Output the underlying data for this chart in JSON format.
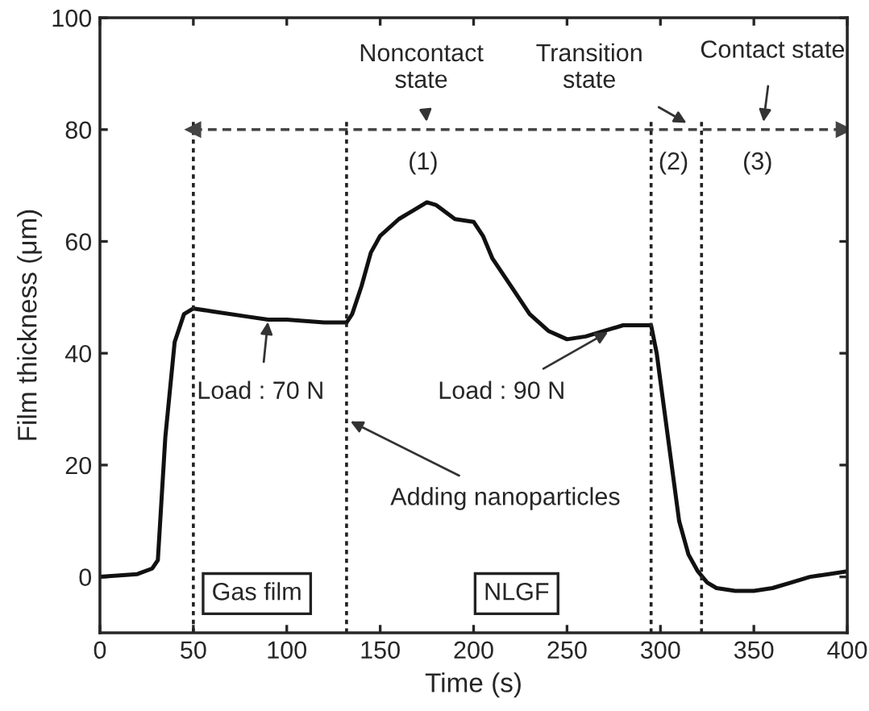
{
  "chart_data": {
    "type": "line",
    "xlabel": "Time (s)",
    "ylabel": "Film thickness (μm)",
    "xlim": [
      0,
      400
    ],
    "xticks": [
      0,
      50,
      100,
      150,
      200,
      250,
      300,
      350,
      400
    ],
    "ylim": [
      -10,
      100
    ],
    "yticks": [
      0,
      20,
      40,
      60,
      80,
      100
    ],
    "grid": false,
    "marker": "none",
    "line_style": "solid",
    "series": [
      {
        "color": "#111111",
        "x": [
          0,
          20,
          28,
          31,
          35,
          40,
          45,
          50,
          60,
          80,
          90,
          100,
          120,
          132,
          135,
          140,
          145,
          150,
          160,
          170,
          175,
          180,
          190,
          200,
          205,
          210,
          220,
          230,
          240,
          250,
          260,
          270,
          280,
          290,
          295,
          298,
          302,
          306,
          310,
          315,
          320,
          325,
          330,
          340,
          350,
          360,
          370,
          380,
          390,
          400
        ],
        "values": [
          0,
          0.5,
          1.5,
          3,
          25,
          42,
          47,
          48,
          47.5,
          46.5,
          46,
          46,
          45.5,
          45.5,
          47,
          52,
          58,
          61,
          64,
          66,
          67,
          66.5,
          64,
          63.5,
          61,
          57,
          52,
          47,
          44,
          42.5,
          43,
          44,
          45,
          45,
          45,
          40,
          30,
          20,
          10,
          4,
          1,
          -1,
          -2,
          -2.5,
          -2.5,
          -2,
          -1,
          0,
          0.5,
          1
        ]
      }
    ],
    "ref_lines": [
      {
        "axis": "x",
        "value": 50,
        "line_style": "dotted"
      },
      {
        "axis": "x",
        "value": 132,
        "line_style": "dotted"
      },
      {
        "axis": "x",
        "value": 295,
        "line_style": "dotted"
      },
      {
        "axis": "x",
        "value": 322,
        "line_style": "dotted"
      },
      {
        "axis": "y",
        "value": 80,
        "line_style": "dashed"
      }
    ],
    "annotations": [
      "Noncontact\nstate",
      "Transition\nstate",
      "Contact state",
      "(1)",
      "(2)",
      "(3)",
      {
        "text": "Load : 70 N",
        "x": 90,
        "y": 46
      },
      {
        "text": "Load : 90 N",
        "x": 273,
        "y": 44
      },
      {
        "text": "Adding nanoparticles",
        "x": 133,
        "y": 28
      },
      "Gas film",
      "NLGF"
    ]
  }
}
